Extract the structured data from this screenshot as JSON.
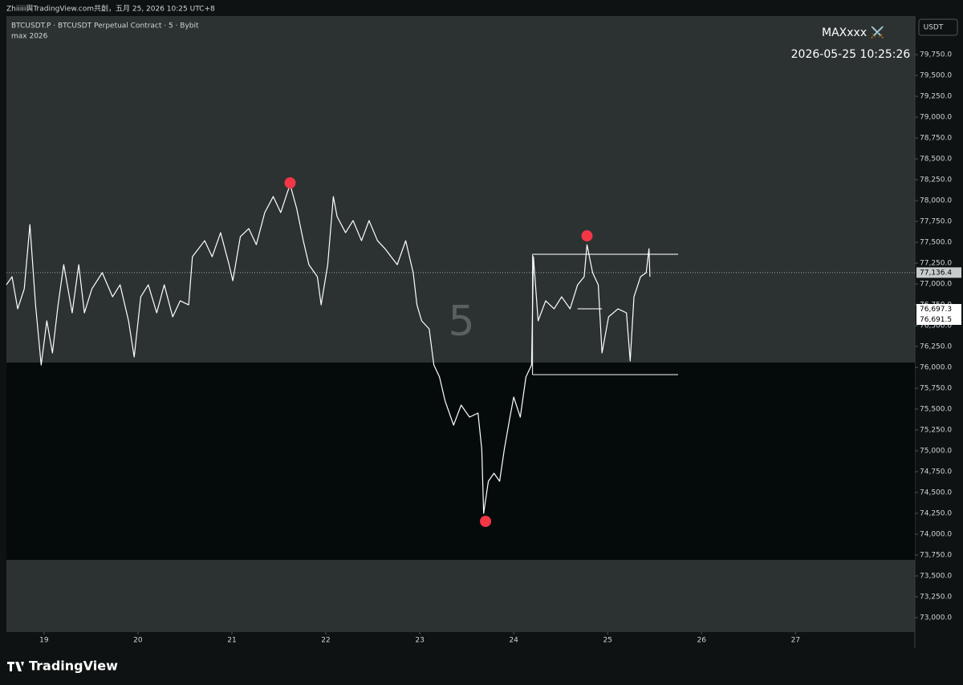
{
  "header": "Zhiiiii與TradingView.com共創，五月 25, 2026 10:25 UTC+8",
  "footer": "TradingView",
  "chart_data": {
    "type": "line",
    "title": "BTCUSDT.P · BTCUSDT Perpetual Contract · 5 · Bybit",
    "subtitle": "max 2026",
    "watermark": "5",
    "author": "MAXxxx ⚔️",
    "timestamp": "2026-05-25 10:25:26",
    "currency": "USDT",
    "color": "#ffffff",
    "x": [
      18.6,
      18.66,
      18.72,
      18.79,
      18.85,
      18.91,
      18.97,
      19.03,
      19.09,
      19.15,
      19.21,
      19.3,
      19.37,
      19.43,
      19.51,
      19.62,
      19.73,
      19.81,
      19.9,
      19.96,
      20.03,
      20.11,
      20.2,
      20.28,
      20.37,
      20.45,
      20.54,
      20.58,
      20.71,
      20.79,
      20.88,
      20.97,
      21.01,
      21.09,
      21.18,
      21.26,
      21.35,
      21.44,
      21.52,
      21.59,
      21.62,
      21.69,
      21.76,
      21.82,
      21.91,
      21.95,
      22.02,
      22.08,
      22.12,
      22.21,
      22.29,
      22.38,
      22.46,
      22.55,
      22.63,
      22.76,
      22.85,
      22.89,
      22.93,
      22.97,
      23.02,
      23.1,
      23.15,
      23.21,
      23.27,
      23.36,
      23.44,
      23.53,
      23.62,
      23.66,
      23.68,
      23.73,
      23.79,
      23.85,
      23.9,
      23.96,
      24.0,
      24.07,
      24.13,
      24.19,
      24.21,
      24.26,
      24.34,
      24.43,
      24.51,
      24.6,
      24.68,
      24.75,
      24.78,
      24.84,
      24.9,
      24.94,
      25.01,
      25.11,
      25.2,
      25.24,
      25.28,
      25.35,
      25.41,
      25.44,
      25.45
    ],
    "values": [
      76990,
      77087,
      76702,
      76942,
      77712,
      76750,
      76029,
      76558,
      76173,
      76750,
      77231,
      76654,
      77231,
      76654,
      76942,
      77135,
      76846,
      76990,
      76558,
      76125,
      76846,
      76990,
      76654,
      76990,
      76606,
      76798,
      76750,
      77327,
      77519,
      77327,
      77615,
      77231,
      77039,
      77567,
      77664,
      77471,
      77856,
      78048,
      77856,
      78096,
      78192,
      77904,
      77519,
      77231,
      77087,
      76750,
      77231,
      78048,
      77808,
      77615,
      77760,
      77519,
      77760,
      77519,
      77423,
      77231,
      77519,
      77327,
      77135,
      76750,
      76558,
      76462,
      76029,
      75885,
      75596,
      75308,
      75548,
      75404,
      75452,
      75019,
      74250,
      74635,
      74731,
      74635,
      75019,
      75404,
      75644,
      75404,
      75885,
      76029,
      77327,
      76558,
      76798,
      76702,
      76846,
      76702,
      76990,
      77087,
      77471,
      77135,
      76990,
      76173,
      76606,
      76702,
      76654,
      76077,
      76846,
      77087,
      77135,
      77423,
      77087
    ],
    "markers": {
      "color": "#f23645",
      "x": [
        21.62,
        24.78,
        23.7
      ],
      "values": [
        78212,
        77577,
        74154
      ]
    },
    "drawings": [
      {
        "x": [
          24.2,
          25.75
        ],
        "values": [
          77356,
          77356
        ]
      },
      {
        "x": [
          24.2,
          25.75
        ],
        "values": [
          75913,
          75913
        ]
      },
      {
        "x": [
          24.2,
          24.2
        ],
        "values": [
          77356,
          75913
        ]
      },
      {
        "x": [
          24.68,
          24.94
        ],
        "values": [
          76702,
          76702
        ]
      }
    ],
    "zone": {
      "from": 73692,
      "to": 76058,
      "color": "#050b0b"
    },
    "price_labels": [
      {
        "value": 77136.4,
        "label": "77,136.4"
      },
      {
        "value": 76697.3,
        "label": "76,697.3"
      },
      {
        "value": 76691.5,
        "label": "76,691.5"
      }
    ],
    "xlim": [
      18.6,
      28.27
    ],
    "xticks": [
      19,
      20,
      21,
      22,
      23,
      24,
      25,
      26,
      27
    ],
    "ylim": [
      72827,
      80212
    ],
    "yticks": [
      {
        "value": 73000,
        "label": "73,000.0"
      },
      {
        "value": 73250,
        "label": "73,250.0"
      },
      {
        "value": 73500,
        "label": "73,500.0"
      },
      {
        "value": 73750,
        "label": "73,750.0"
      },
      {
        "value": 74000,
        "label": "74,000.0"
      },
      {
        "value": 74250,
        "label": "74,250.0"
      },
      {
        "value": 74500,
        "label": "74,500.0"
      },
      {
        "value": 74750,
        "label": "74,750.0"
      },
      {
        "value": 75000,
        "label": "75,000.0"
      },
      {
        "value": 75250,
        "label": "75,250.0"
      },
      {
        "value": 75500,
        "label": "75,500.0"
      },
      {
        "value": 75750,
        "label": "75,750.0"
      },
      {
        "value": 76000,
        "label": "76,000.0"
      },
      {
        "value": 76250,
        "label": "76,250.0"
      },
      {
        "value": 76500,
        "label": "76,500.0"
      },
      {
        "value": 76750,
        "label": "76,750.0"
      },
      {
        "value": 77000,
        "label": "77,000.0"
      },
      {
        "value": 77250,
        "label": "77,250.0"
      },
      {
        "value": 77500,
        "label": "77,500.0"
      },
      {
        "value": 77750,
        "label": "77,750.0"
      },
      {
        "value": 78000,
        "label": "78,000.0"
      },
      {
        "value": 78250,
        "label": "78,250.0"
      },
      {
        "value": 78500,
        "label": "78,500.0"
      },
      {
        "value": 78750,
        "label": "78,750.0"
      },
      {
        "value": 79000,
        "label": "79,000.0"
      },
      {
        "value": 79250,
        "label": "79,250.0"
      },
      {
        "value": 79500,
        "label": "79,500.0"
      },
      {
        "value": 79750,
        "label": "79,750.0"
      }
    ]
  }
}
